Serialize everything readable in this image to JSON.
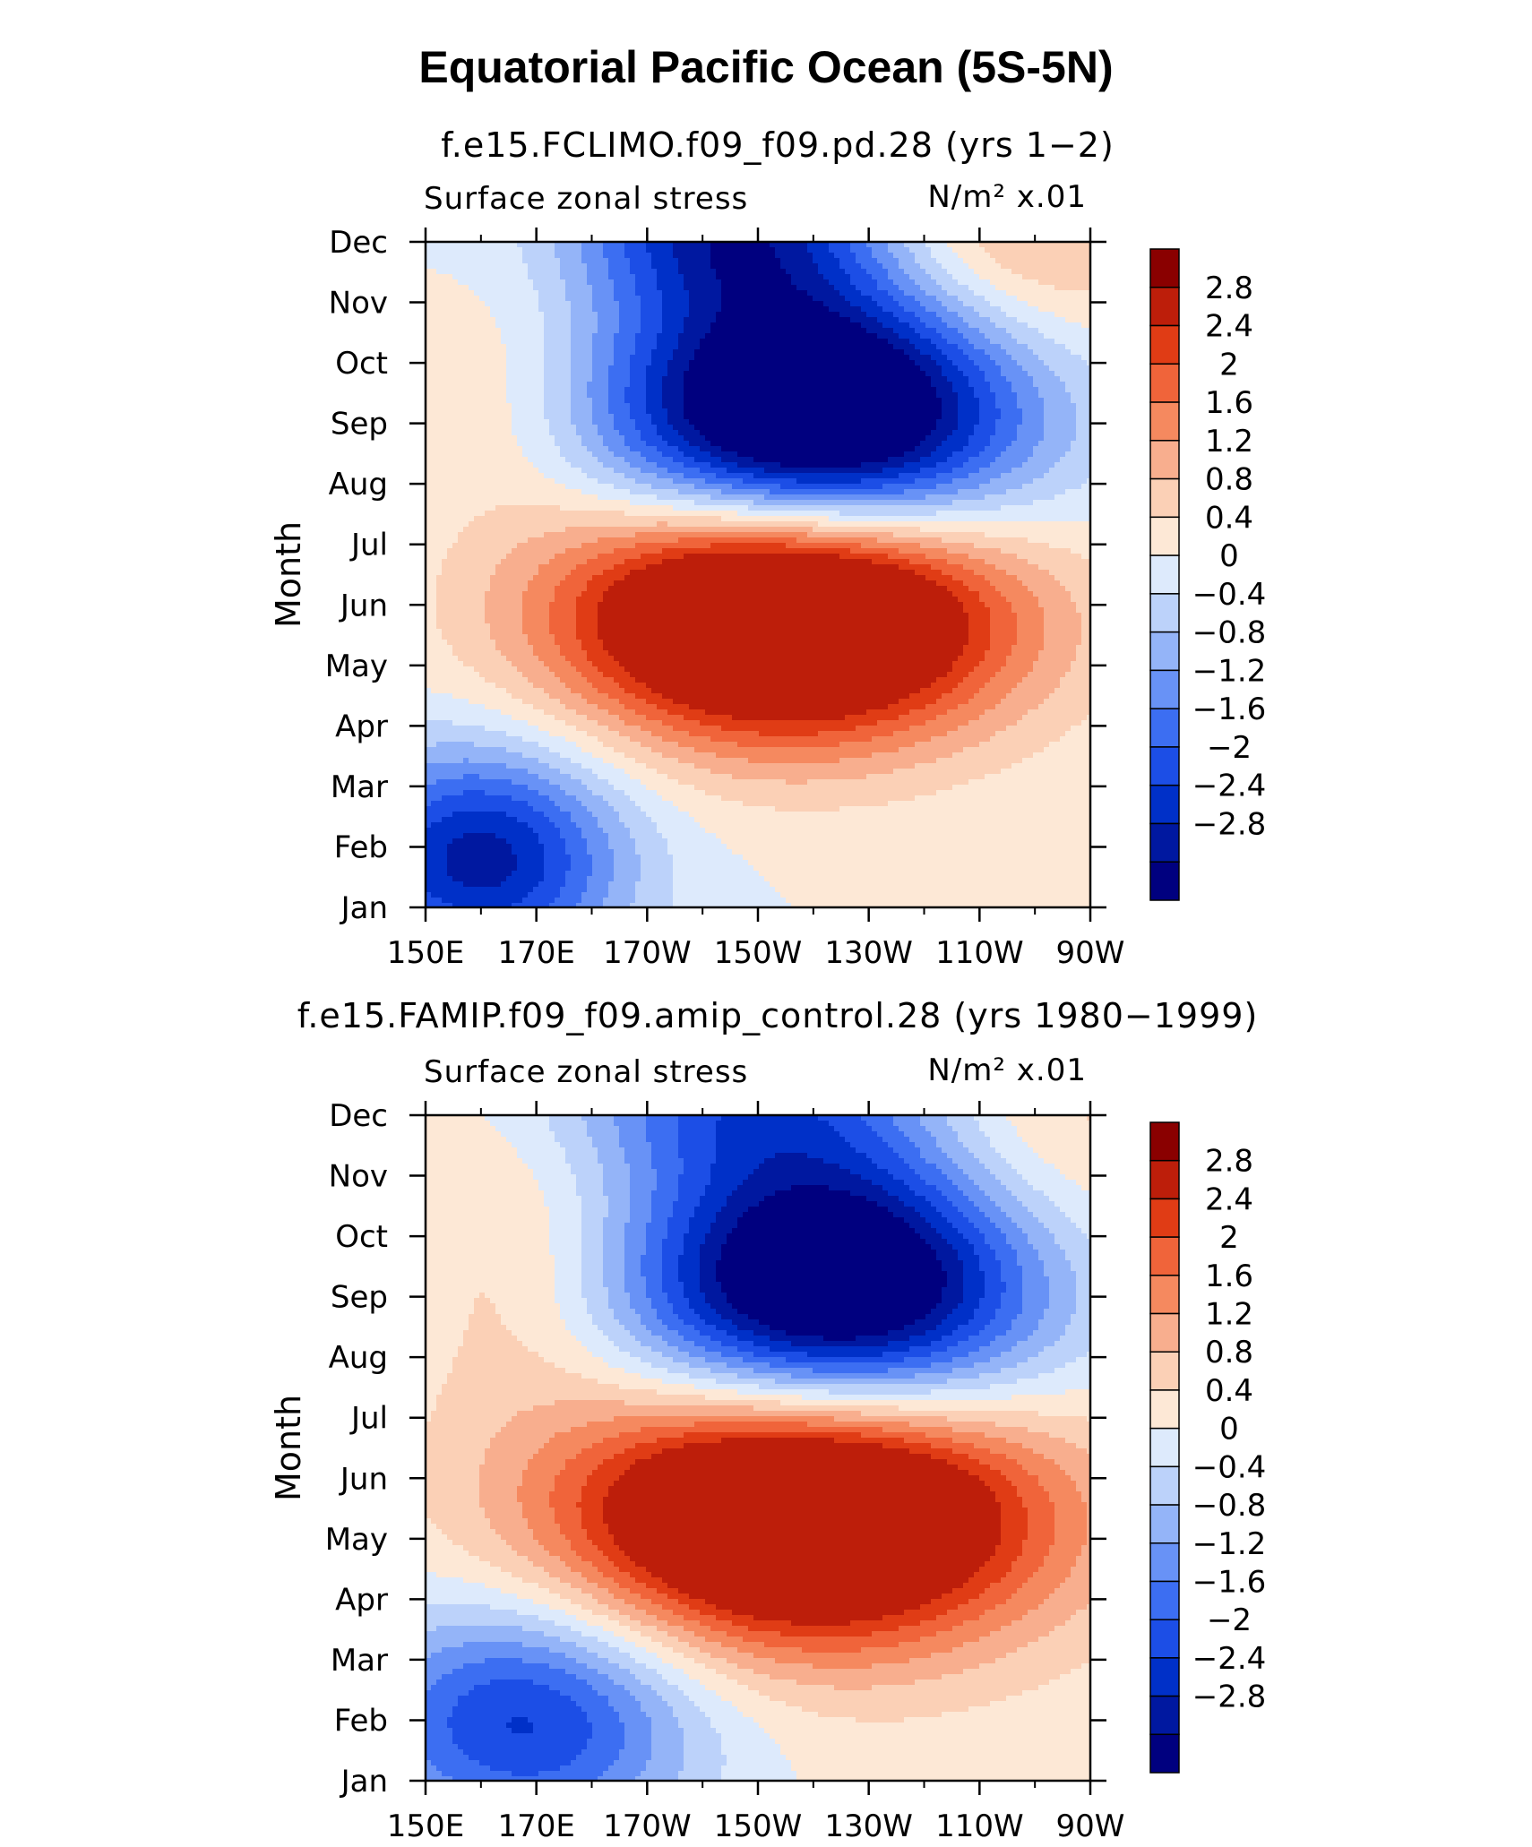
{
  "title": "Equatorial Pacific Ocean (5S-5N)",
  "colors": [
    "#00007f",
    "#0018a0",
    "#0030c8",
    "#1c4ee6",
    "#3c6ef2",
    "#6892f6",
    "#94b4f8",
    "#bcd2fa",
    "#ddeafc",
    "#fde8d6",
    "#fbd0b6",
    "#f8ae8e",
    "#f5895f",
    "#f0643a",
    "#e03c15",
    "#bd1e0a",
    "#8a0000"
  ],
  "chart_data": [
    {
      "type": "contour",
      "title": "f.e15.FCLIMO.f09_f09.pd.28 (yrs 1−2)",
      "left_label": "Surface zonal stress",
      "right_label": "N/m² x.01",
      "ylabel": "Month",
      "xlabel": "",
      "x_ticks": [
        "150E",
        "170E",
        "170W",
        "150W",
        "130W",
        "110W",
        "90W"
      ],
      "x_range": [
        150,
        270
      ],
      "y_ticks": [
        "Jan",
        "Feb",
        "Mar",
        "Apr",
        "May",
        "Jun",
        "Jul",
        "Aug",
        "Sep",
        "Oct",
        "Nov",
        "Dec"
      ],
      "levels": [
        -2.8,
        -2.4,
        -2,
        -1.6,
        -1.2,
        -0.8,
        -0.4,
        0,
        0.4,
        0.8,
        1.2,
        1.6,
        2,
        2.4,
        2.8
      ],
      "level_labels": [
        "−2.8",
        "−2.4",
        "−2",
        "−1.6",
        "−1.2",
        "−0.8",
        "−0.4",
        "0",
        "0.4",
        "0.8",
        "1.2",
        "1.6",
        "2",
        "2.4",
        "2.8"
      ],
      "field": {
        "bg": 0.4,
        "features": [
          {
            "lon": 215,
            "month": 4.9,
            "amp": 5.5,
            "slon": 28,
            "smo": 1.45
          },
          {
            "lon": 220,
            "month": 8.1,
            "amp": -5.3,
            "slon": 26,
            "smo": 1.6
          },
          {
            "lon": 160,
            "month": 0.8,
            "amp": -3.0,
            "slon": 18,
            "smo": 1.3
          },
          {
            "lon": 205,
            "month": 11.3,
            "amp": -2.6,
            "slon": 20,
            "smo": 1.0
          },
          {
            "lon": 255,
            "month": 11.0,
            "amp": 1.2,
            "slon": 20,
            "smo": 1.4
          },
          {
            "lon": 165,
            "month": 8.5,
            "amp": 0.5,
            "slon": 12,
            "smo": 1.5
          }
        ]
      }
    },
    {
      "type": "contour",
      "title": "f.e15.FAMIP.f09_f09.amip_control.28 (yrs 1980−1999)",
      "left_label": "Surface zonal stress",
      "right_label": "N/m² x.01",
      "ylabel": "Month",
      "xlabel": "",
      "x_ticks": [
        "150E",
        "170E",
        "170W",
        "150W",
        "130W",
        "110W",
        "90W"
      ],
      "x_range": [
        150,
        270
      ],
      "y_ticks": [
        "Jan",
        "Feb",
        "Mar",
        "Apr",
        "May",
        "Jun",
        "Jul",
        "Aug",
        "Sep",
        "Oct",
        "Nov",
        "Dec"
      ],
      "levels": [
        -2.8,
        -2.4,
        -2,
        -1.6,
        -1.2,
        -0.8,
        -0.4,
        0,
        0.4,
        0.8,
        1.2,
        1.6,
        2,
        2.4,
        2.8
      ],
      "level_labels": [
        "−2.8",
        "−2.4",
        "−2",
        "−1.6",
        "−1.2",
        "−0.8",
        "−0.4",
        "0",
        "0.4",
        "0.8",
        "1.2",
        "1.6",
        "2",
        "2.4",
        "2.8"
      ],
      "field": {
        "bg": 0.5,
        "features": [
          {
            "lon": 218,
            "month": 4.4,
            "amp": 5.0,
            "slon": 30,
            "smo": 1.5
          },
          {
            "lon": 224,
            "month": 8.2,
            "amp": -4.8,
            "slon": 26,
            "smo": 1.55
          },
          {
            "lon": 168,
            "month": 1.0,
            "amp": -2.6,
            "slon": 22,
            "smo": 1.4
          },
          {
            "lon": 208,
            "month": 11.4,
            "amp": -2.0,
            "slon": 24,
            "smo": 1.1
          },
          {
            "lon": 168,
            "month": 8.5,
            "amp": 0.6,
            "slon": 14,
            "smo": 1.8
          },
          {
            "lon": 260,
            "month": 10.5,
            "amp": 0.7,
            "slon": 18,
            "smo": 1.6
          }
        ]
      }
    }
  ]
}
